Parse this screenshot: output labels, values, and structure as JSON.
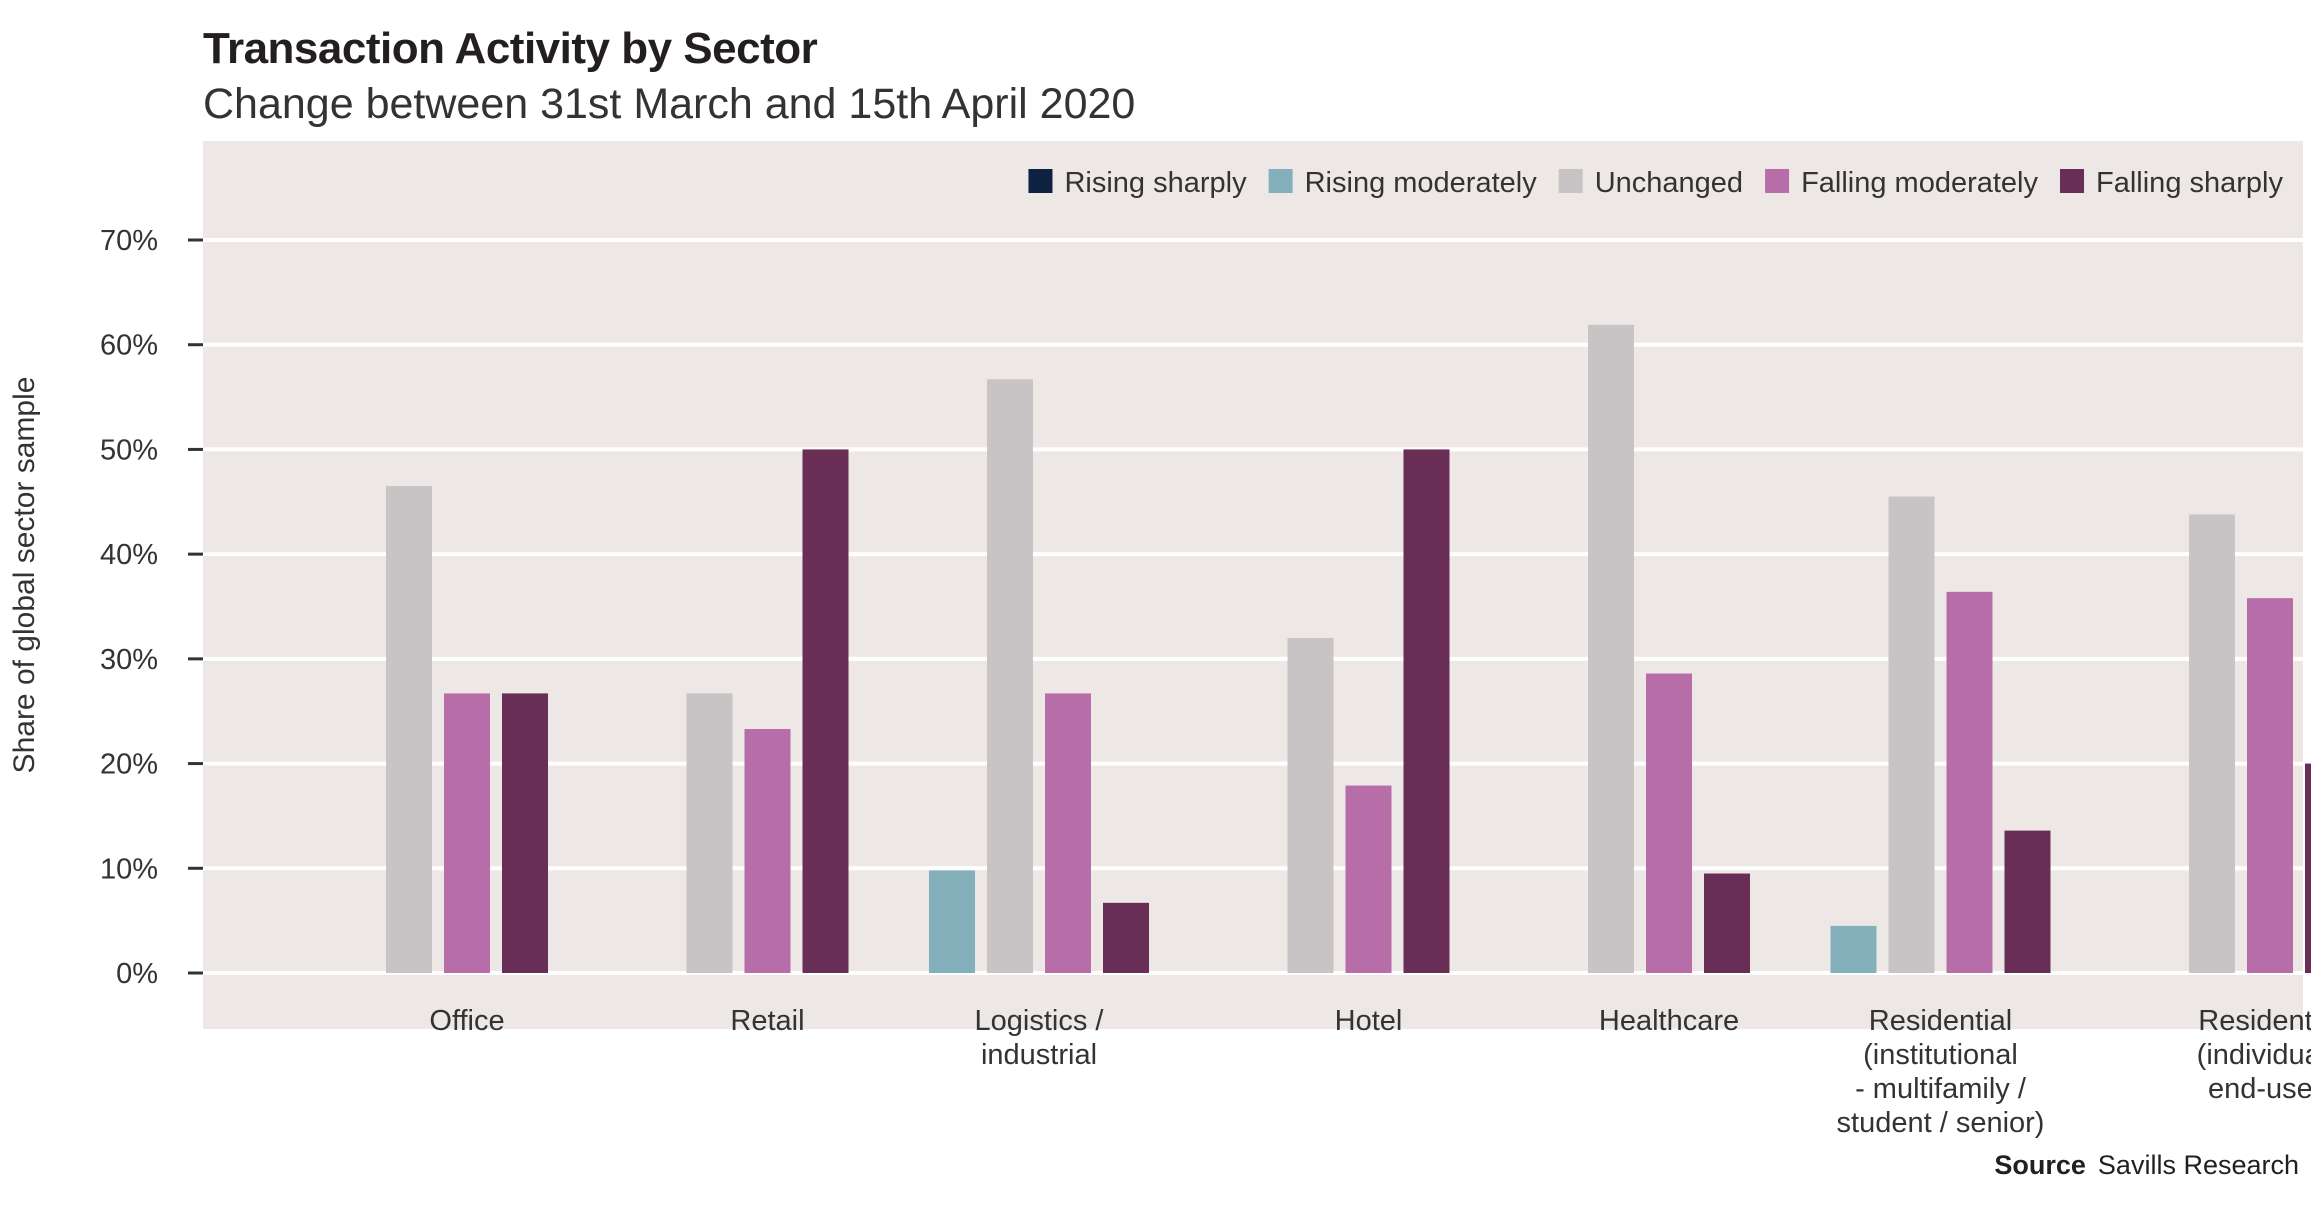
{
  "chart_data": {
    "type": "bar",
    "title": "Transaction Activity by Sector",
    "subtitle": "Change between 31st March and 15th April 2020",
    "ylabel": "Share of global sector sample",
    "xlabel": "",
    "ylim": [
      0,
      70
    ],
    "yticks": [
      "0%",
      "10%",
      "20%",
      "30%",
      "40%",
      "50%",
      "60%",
      "70%"
    ],
    "grid": true,
    "legend_position": "top-right",
    "categories": [
      [
        "Office"
      ],
      [
        "Retail"
      ],
      [
        "Logistics /",
        "industrial"
      ],
      [
        "Hotel"
      ],
      [
        "Healthcare"
      ],
      [
        "Residential",
        "(institutional",
        "- multifamily /",
        "student / senior)"
      ],
      [
        "Residential",
        "(individual /",
        "end-user)"
      ]
    ],
    "series": [
      {
        "name": "Rising sharply",
        "color": "#0d2240",
        "values": [
          0,
          0,
          0,
          0,
          0,
          0,
          0
        ]
      },
      {
        "name": "Rising moderately",
        "color": "#83b0bb",
        "values": [
          0,
          0,
          9.8,
          0,
          0,
          4.5,
          0
        ]
      },
      {
        "name": "Unchanged",
        "color": "#c8c4c6",
        "values": [
          46.5,
          26.7,
          56.7,
          32,
          61.9,
          45.5,
          43.8
        ]
      },
      {
        "name": "Falling moderately",
        "color": "#b76ea8",
        "values": [
          26.7,
          23.3,
          26.7,
          17.9,
          28.6,
          36.4,
          35.8
        ]
      },
      {
        "name": "Falling sharply",
        "color": "#682e55",
        "values": [
          26.7,
          50,
          6.7,
          50,
          9.5,
          13.6,
          20
        ]
      }
    ]
  },
  "source": {
    "label": "Source",
    "text": "Savills Research"
  }
}
